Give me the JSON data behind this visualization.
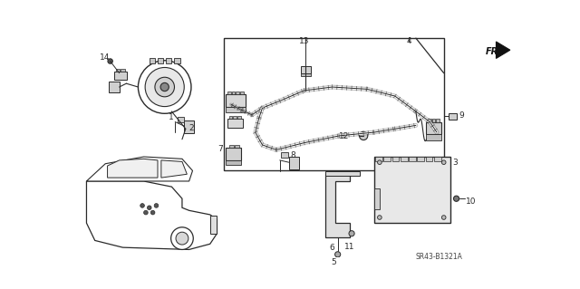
{
  "bg_color": "#ffffff",
  "line_color": "#2a2a2a",
  "part_number": "SR43-B1321A",
  "fr_label": "FR.",
  "figsize": [
    6.4,
    3.19
  ],
  "dpi": 100,
  "xlim": [
    0,
    640
  ],
  "ylim": [
    0,
    319
  ]
}
